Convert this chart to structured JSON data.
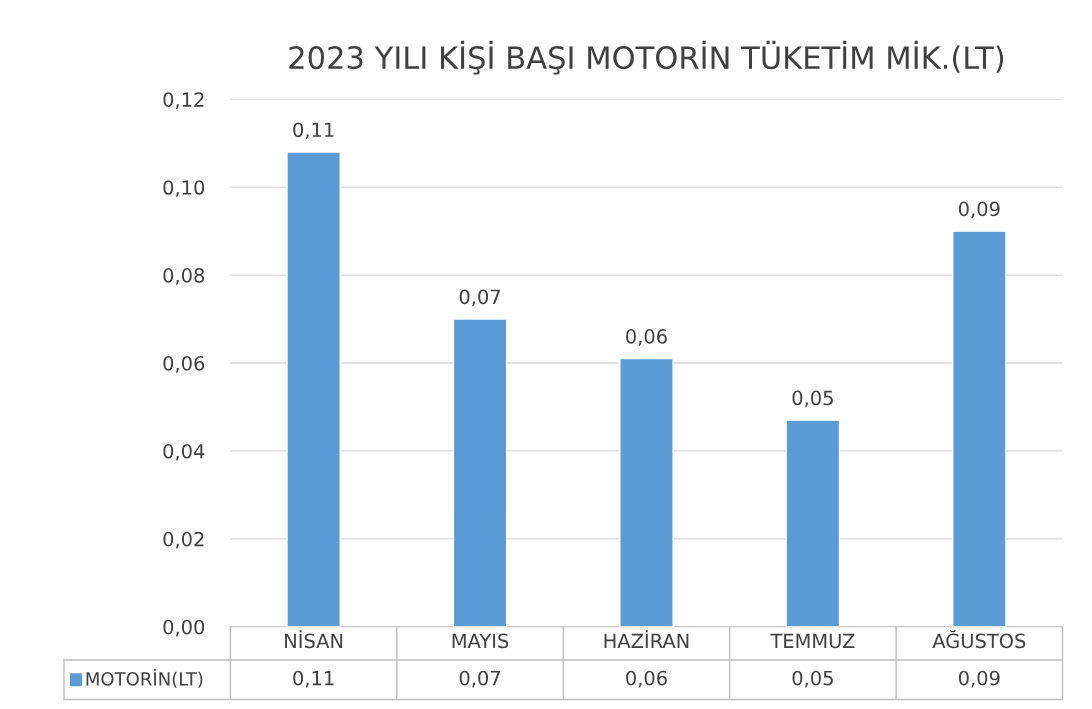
{
  "chart_data": {
    "type": "bar",
    "title": "2023 YILI KİŞİ BAŞI MOTORİN TÜKETİM MİK.(LT)",
    "categories": [
      "NİSAN",
      "MAYIS",
      "HAZİRAN",
      "TEMMUZ",
      "AĞUSTOS"
    ],
    "series": [
      {
        "name": "MOTORİN(LT)",
        "color": "#5b9bd5",
        "values": [
          0.108,
          0.07,
          0.061,
          0.047,
          0.09
        ],
        "value_labels": [
          "0,11",
          "0,07",
          "0,06",
          "0,05",
          "0,09"
        ]
      }
    ],
    "ylim": [
      0,
      0.12
    ],
    "yticks": [
      {
        "value": 0,
        "label": "0,00"
      },
      {
        "value": 0.02,
        "label": "0,02"
      },
      {
        "value": 0.04,
        "label": "0,04"
      },
      {
        "value": 0.06,
        "label": "0,06"
      },
      {
        "value": 0.08,
        "label": "0,08"
      },
      {
        "value": 0.1,
        "label": "0,10"
      },
      {
        "value": 0.12,
        "label": "0,12"
      }
    ],
    "grid": "y",
    "legend": "bottom"
  }
}
